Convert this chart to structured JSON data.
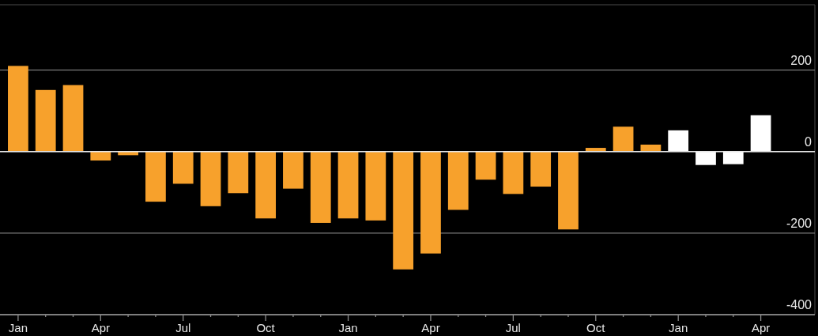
{
  "chart_data": {
    "type": "bar",
    "categories": [
      "Jan",
      null,
      null,
      "Apr",
      null,
      null,
      "Jul",
      null,
      null,
      "Oct",
      null,
      null,
      "Jan",
      null,
      null,
      "Apr",
      null,
      null,
      "Jul",
      null,
      null,
      "Oct",
      null,
      null,
      "Jan",
      null,
      null,
      "Apr"
    ],
    "values": [
      210,
      151,
      163,
      -22,
      -9,
      -123,
      -79,
      -134,
      -102,
      -164,
      -91,
      -175,
      -164,
      -169,
      -289,
      -250,
      -143,
      -69,
      -104,
      -86,
      -191,
      9,
      61,
      17,
      52,
      -33,
      -31,
      89
    ],
    "colors": [
      "#f7a12c",
      "#f7a12c",
      "#f7a12c",
      "#f7a12c",
      "#f7a12c",
      "#f7a12c",
      "#f7a12c",
      "#f7a12c",
      "#f7a12c",
      "#f7a12c",
      "#f7a12c",
      "#f7a12c",
      "#f7a12c",
      "#f7a12c",
      "#f7a12c",
      "#f7a12c",
      "#f7a12c",
      "#f7a12c",
      "#f7a12c",
      "#f7a12c",
      "#f7a12c",
      "#f7a12c",
      "#f7a12c",
      "#f7a12c",
      "#ffffff",
      "#ffffff",
      "#ffffff",
      "#ffffff"
    ],
    "ylim": [
      -400,
      360
    ],
    "yticks": [
      -400,
      -200,
      0,
      200
    ],
    "grid": "y",
    "ref_lines": [
      {
        "axis": "y",
        "value": 0,
        "color": "#e6e6e6"
      }
    ]
  }
}
